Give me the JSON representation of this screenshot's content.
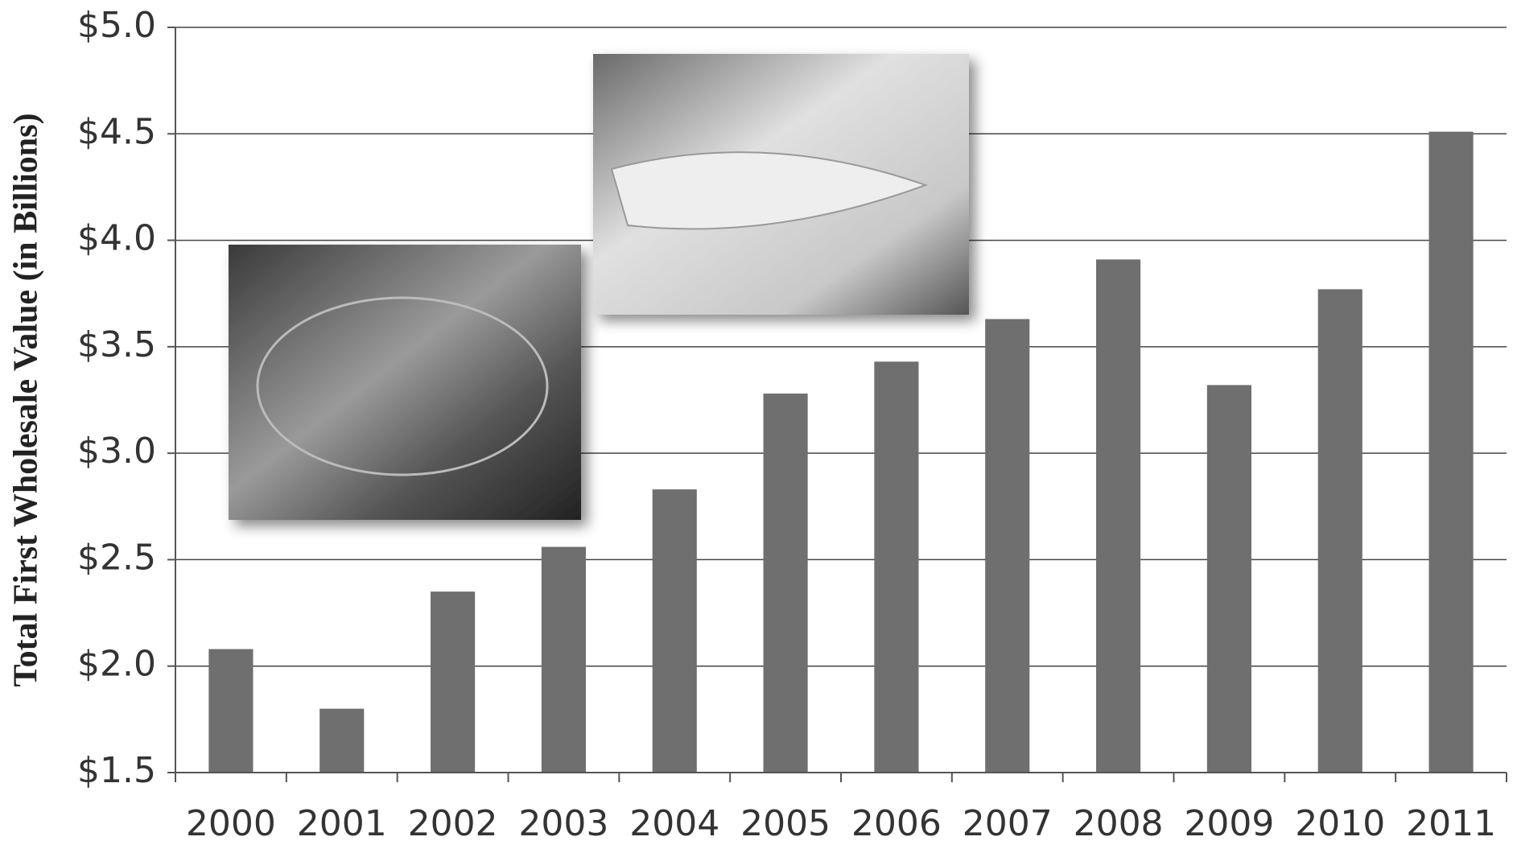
{
  "chart_data": {
    "type": "bar",
    "y_label": "Total First Wholesale Value (in Billions)",
    "categories": [
      "2000",
      "2001",
      "2002",
      "2003",
      "2004",
      "2005",
      "2006",
      "2007",
      "2008",
      "2009",
      "2010",
      "2011"
    ],
    "values": [
      2.08,
      1.8,
      2.35,
      2.56,
      2.83,
      3.28,
      3.43,
      3.63,
      3.91,
      3.32,
      3.77,
      4.51
    ],
    "color": "#6f6f6f",
    "ylim": [
      1.5,
      5.0
    ],
    "yticks": [
      {
        "value": 1.5,
        "label": "$1.5"
      },
      {
        "value": 2.0,
        "label": "$2.0"
      },
      {
        "value": 2.5,
        "label": "$2.5"
      },
      {
        "value": 3.0,
        "label": "$3.0"
      },
      {
        "value": 3.5,
        "label": "$3.5"
      },
      {
        "value": 4.0,
        "label": "$4.0"
      },
      {
        "value": 4.5,
        "label": "$4.5"
      },
      {
        "value": 5.0,
        "label": "$5.0"
      }
    ],
    "grid": true
  }
}
